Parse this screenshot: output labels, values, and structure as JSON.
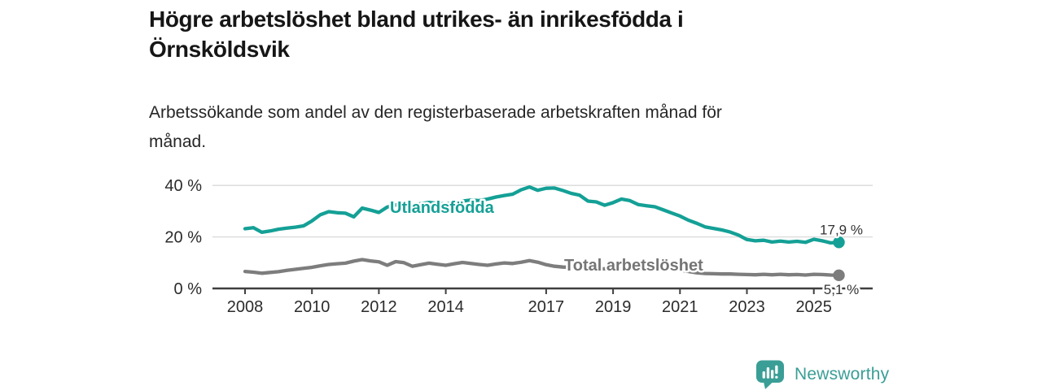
{
  "header": {
    "title": "Högre arbetslöshet bland utrikes- än inrikesfödda i\nÖrnsköldsvik",
    "subtitle": "Arbetssökande som andel av den registerbaserade arbetskraften månad för\nmånad."
  },
  "footer": {
    "brand": "Newsworthy",
    "logo_icon": "bar-chart-speech-bubble-icon"
  },
  "colors": {
    "teal": "#14a096",
    "gray": "#7d7d7d",
    "label_gray": "#757575",
    "grid": "#d9d9d9",
    "axis": "#3f3f3f",
    "tick_text": "#2b2b2b",
    "value_text": "#333333",
    "brand_teal": "#3a9e96",
    "background": "#ffffff"
  },
  "chart_data": {
    "type": "line",
    "title": "Högre arbetslöshet bland utrikes- än inrikesfödda i Örnsköldsvik",
    "subtitle": "Arbetssökande som andel av den registerbaserade arbetskraften månad för månad.",
    "x_start": 2008.0,
    "x_step": 0.25,
    "x_end": 2025.75,
    "ylim": [
      0,
      44
    ],
    "grid": "horizontal",
    "legend": "inline-labels",
    "y_ticks": [
      {
        "value": 0,
        "label": "0 %"
      },
      {
        "value": 20,
        "label": "20 %"
      },
      {
        "value": 40,
        "label": "40 %"
      }
    ],
    "x_ticks": [
      {
        "value": 2008,
        "label": "2008"
      },
      {
        "value": 2010,
        "label": "2010"
      },
      {
        "value": 2012,
        "label": "2012"
      },
      {
        "value": 2014,
        "label": "2014"
      },
      {
        "value": 2017,
        "label": "2017"
      },
      {
        "value": 2019,
        "label": "2019"
      },
      {
        "value": 2021,
        "label": "2021"
      },
      {
        "value": 2023,
        "label": "2023"
      },
      {
        "value": 2025,
        "label": "2025"
      }
    ],
    "series": [
      {
        "name": "Utlandsfödda",
        "color": "#14a096",
        "end_label": "17,9 %",
        "end_value": 17.9,
        "values": [
          23.2,
          23.6,
          21.8,
          22.3,
          23.0,
          23.4,
          23.8,
          24.3,
          26.2,
          28.6,
          29.8,
          29.4,
          29.2,
          27.8,
          31.2,
          30.4,
          29.5,
          31.6,
          32.4,
          33.0,
          32.4,
          32.9,
          33.4,
          33.0,
          32.7,
          33.3,
          33.9,
          34.3,
          34.1,
          34.7,
          35.5,
          36.1,
          36.6,
          38.3,
          39.4,
          38.1,
          38.9,
          39.0,
          38.0,
          36.9,
          36.2,
          33.9,
          33.6,
          32.3,
          33.3,
          34.7,
          34.1,
          32.6,
          32.1,
          31.7,
          30.5,
          29.3,
          28.1,
          26.5,
          25.3,
          23.9,
          23.3,
          22.7,
          21.9,
          20.7,
          19.0,
          18.5,
          18.7,
          18.0,
          18.4,
          18.0,
          18.3,
          17.9,
          19.1,
          18.5,
          17.7,
          17.9
        ]
      },
      {
        "name": "Total arbetslöshet",
        "color": "#7d7d7d",
        "end_label": "5,1 %",
        "end_value": 5.1,
        "values": [
          6.6,
          6.3,
          5.9,
          6.2,
          6.5,
          7.0,
          7.4,
          7.8,
          8.2,
          8.8,
          9.3,
          9.6,
          9.8,
          10.6,
          11.2,
          10.7,
          10.3,
          9.0,
          10.4,
          10.0,
          8.6,
          9.2,
          9.8,
          9.4,
          9.0,
          9.6,
          10.1,
          9.7,
          9.3,
          9.0,
          9.5,
          9.9,
          9.7,
          10.2,
          10.8,
          10.2,
          9.2,
          8.6,
          8.3,
          8.2,
          8.0,
          7.8,
          7.7,
          7.6,
          7.7,
          7.9,
          7.7,
          7.5,
          8.2,
          8.8,
          8.5,
          8.0,
          7.2,
          6.6,
          6.1,
          5.8,
          5.7,
          5.6,
          5.6,
          5.5,
          5.4,
          5.3,
          5.5,
          5.3,
          5.5,
          5.3,
          5.4,
          5.2,
          5.5,
          5.4,
          5.2,
          5.1
        ]
      }
    ]
  }
}
